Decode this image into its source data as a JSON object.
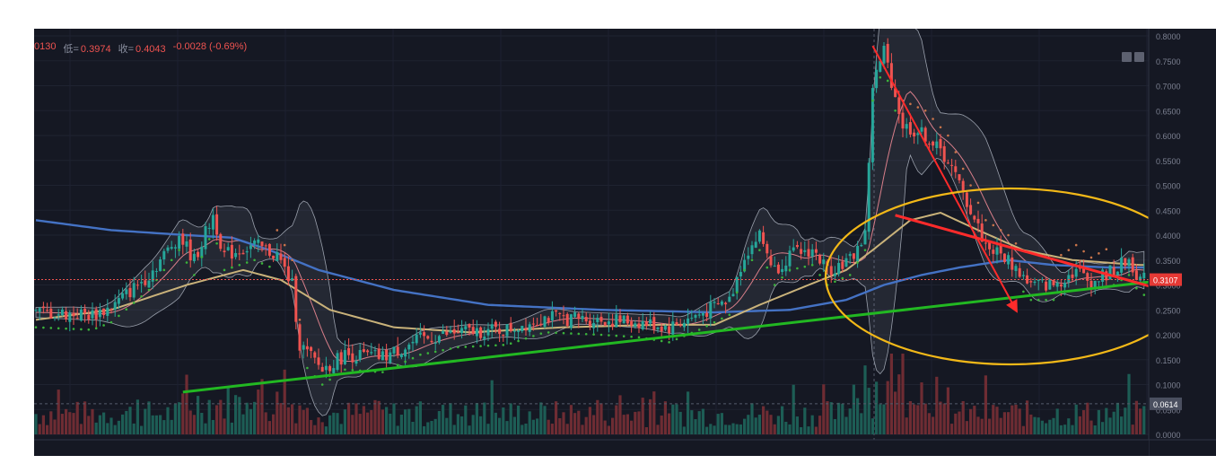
{
  "header": {
    "high_fragment": "0130",
    "low_label": "低=",
    "low_value": "0.3974",
    "close_label": "收=",
    "close_value": "0.4043",
    "change": "-0.0028 (-0.69%)"
  },
  "colors": {
    "background": "#151823",
    "up": "#26a69a",
    "down": "#ef5350",
    "ma_long": "#4472c4",
    "ma_mid": "#c9b27a",
    "ma_short": "#d97f8a",
    "bollinger": "#9aa0ac",
    "trend_up": "#22b822",
    "trend_down": "#ff2b2b",
    "highlight_ellipse": "#f2b818"
  },
  "chart_data": {
    "type": "candlestick",
    "y_axis": {
      "ticks": [
        "0.8000",
        "0.7500",
        "0.7000",
        "0.6500",
        "0.6000",
        "0.5500",
        "0.5000",
        "0.4500",
        "0.4000",
        "0.3500",
        "0.3000",
        "0.2500",
        "0.2000",
        "0.1500",
        "0.1000",
        "0.0500",
        "0.0000"
      ],
      "range": [
        0.0,
        0.8
      ]
    },
    "current_price_label": "0.3107",
    "current_price": 0.3107,
    "volume_label": "0.0614",
    "volume_level": 0.0614,
    "candle_count": 250,
    "price_path": [
      [
        0,
        0.245
      ],
      [
        15,
        0.24
      ],
      [
        20,
        0.255
      ],
      [
        30,
        0.32
      ],
      [
        38,
        0.4
      ],
      [
        42,
        0.35
      ],
      [
        47,
        0.44
      ],
      [
        50,
        0.36
      ],
      [
        58,
        0.38
      ],
      [
        64,
        0.36
      ],
      [
        68,
        0.3
      ],
      [
        70,
        0.18
      ],
      [
        76,
        0.13
      ],
      [
        82,
        0.16
      ],
      [
        92,
        0.155
      ],
      [
        102,
        0.19
      ],
      [
        112,
        0.205
      ],
      [
        125,
        0.21
      ],
      [
        135,
        0.235
      ],
      [
        150,
        0.23
      ],
      [
        160,
        0.225
      ],
      [
        168,
        0.215
      ],
      [
        176,
        0.24
      ],
      [
        184,
        0.27
      ],
      [
        188,
        0.36
      ],
      [
        192,
        0.4
      ],
      [
        196,
        0.33
      ],
      [
        200,
        0.36
      ],
      [
        206,
        0.37
      ],
      [
        210,
        0.33
      ],
      [
        216,
        0.35
      ],
      [
        220,
        0.4
      ],
      [
        222,
        0.7
      ],
      [
        225,
        0.77
      ],
      [
        230,
        0.62
      ],
      [
        236,
        0.6
      ],
      [
        242,
        0.55
      ],
      [
        248,
        0.45
      ],
      [
        252,
        0.38
      ],
      [
        258,
        0.35
      ],
      [
        264,
        0.3
      ],
      [
        270,
        0.3
      ],
      [
        276,
        0.33
      ],
      [
        280,
        0.305
      ],
      [
        286,
        0.33
      ],
      [
        290,
        0.35
      ],
      [
        293,
        0.31
      ]
    ],
    "ma_long_path": [
      [
        0,
        0.43
      ],
      [
        20,
        0.41
      ],
      [
        40,
        0.4
      ],
      [
        52,
        0.395
      ],
      [
        62,
        0.37
      ],
      [
        75,
        0.33
      ],
      [
        95,
        0.29
      ],
      [
        120,
        0.26
      ],
      [
        150,
        0.25
      ],
      [
        180,
        0.245
      ],
      [
        200,
        0.25
      ],
      [
        215,
        0.27
      ],
      [
        225,
        0.3
      ],
      [
        235,
        0.32
      ],
      [
        245,
        0.335
      ],
      [
        258,
        0.35
      ],
      [
        270,
        0.34
      ],
      [
        285,
        0.335
      ],
      [
        293,
        0.335
      ]
    ],
    "ma_mid_path": [
      [
        0,
        0.23
      ],
      [
        20,
        0.25
      ],
      [
        40,
        0.3
      ],
      [
        55,
        0.33
      ],
      [
        65,
        0.31
      ],
      [
        78,
        0.25
      ],
      [
        95,
        0.215
      ],
      [
        115,
        0.205
      ],
      [
        140,
        0.215
      ],
      [
        165,
        0.22
      ],
      [
        180,
        0.22
      ],
      [
        192,
        0.26
      ],
      [
        205,
        0.3
      ],
      [
        215,
        0.33
      ],
      [
        222,
        0.37
      ],
      [
        232,
        0.43
      ],
      [
        240,
        0.445
      ],
      [
        250,
        0.41
      ],
      [
        262,
        0.37
      ],
      [
        275,
        0.35
      ],
      [
        293,
        0.34
      ]
    ],
    "trend_lines": [
      {
        "color": "green",
        "from": [
          39,
          0.085
        ],
        "to": [
          300,
          0.31
        ]
      },
      {
        "color": "red",
        "from": [
          222,
          0.78
        ],
        "to": [
          260,
          0.25
        ]
      },
      {
        "color": "red",
        "from": [
          228,
          0.44
        ],
        "to": [
          318,
          0.25
        ]
      }
    ]
  }
}
